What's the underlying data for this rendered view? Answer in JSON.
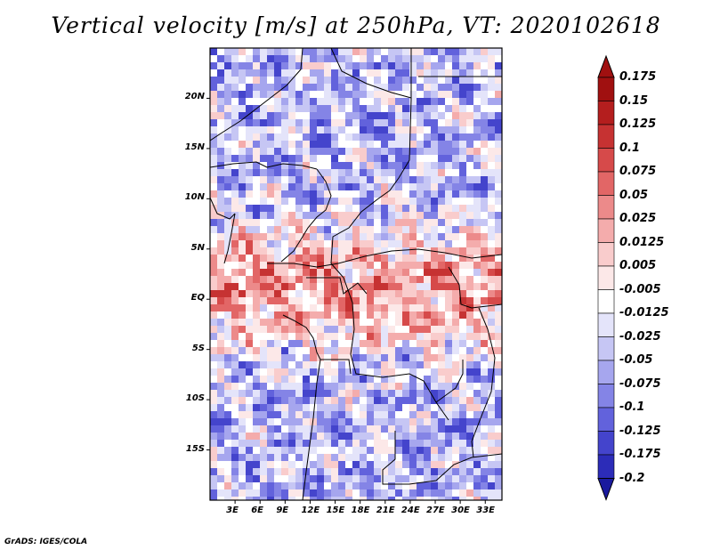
{
  "title": "Vertical velocity [m/s] at 250hPa, VT: 2020102618",
  "credit": "GrADS: IGES/COLA",
  "map": {
    "lon_range": [
      0,
      35
    ],
    "lat_range": [
      -20,
      25
    ],
    "lat_ticks": [
      {
        "value": 20,
        "label": "20N"
      },
      {
        "value": 15,
        "label": "15N"
      },
      {
        "value": 10,
        "label": "10N"
      },
      {
        "value": 5,
        "label": "5N"
      },
      {
        "value": 0,
        "label": "EQ"
      },
      {
        "value": -5,
        "label": "5S"
      },
      {
        "value": -10,
        "label": "10S"
      },
      {
        "value": -15,
        "label": "15S"
      }
    ],
    "lon_ticks": [
      {
        "value": 3,
        "label": "3E"
      },
      {
        "value": 6,
        "label": "6E"
      },
      {
        "value": 9,
        "label": "9E"
      },
      {
        "value": 12,
        "label": "12E"
      },
      {
        "value": 15,
        "label": "15E"
      },
      {
        "value": 18,
        "label": "18E"
      },
      {
        "value": 21,
        "label": "21E"
      },
      {
        "value": 24,
        "label": "24E"
      },
      {
        "value": 27,
        "label": "27E"
      },
      {
        "value": 30,
        "label": "30E"
      },
      {
        "value": 33,
        "label": "33E"
      }
    ]
  },
  "colorbar": {
    "levels": [
      {
        "label": "0.175",
        "color": "#a01010"
      },
      {
        "label": "0.15",
        "color": "#b41e1e"
      },
      {
        "label": "0.125",
        "color": "#c63232"
      },
      {
        "label": "0.1",
        "color": "#d64a4a"
      },
      {
        "label": "0.075",
        "color": "#e26666"
      },
      {
        "label": "0.05",
        "color": "#ec8a8a"
      },
      {
        "label": "0.025",
        "color": "#f4acac"
      },
      {
        "label": "0.0125",
        "color": "#f9cccc"
      },
      {
        "label": "0.005",
        "color": "#fce8e8"
      },
      {
        "label": "-0.005",
        "color": "#ffffff"
      },
      {
        "label": "-0.0125",
        "color": "#e4e4fa"
      },
      {
        "label": "-0.025",
        "color": "#c6c6f4"
      },
      {
        "label": "-0.05",
        "color": "#a6a6ee"
      },
      {
        "label": "-0.075",
        "color": "#8484e6"
      },
      {
        "label": "-0.1",
        "color": "#6262dc"
      },
      {
        "label": "-0.125",
        "color": "#4444cc"
      },
      {
        "label": "-0.175",
        "color": "#2c2cb8"
      },
      {
        "label": "-0.2",
        "color": "#1a1a9e"
      }
    ],
    "top_color": "#a01010",
    "bottom_color": "#1a1a9e"
  }
}
